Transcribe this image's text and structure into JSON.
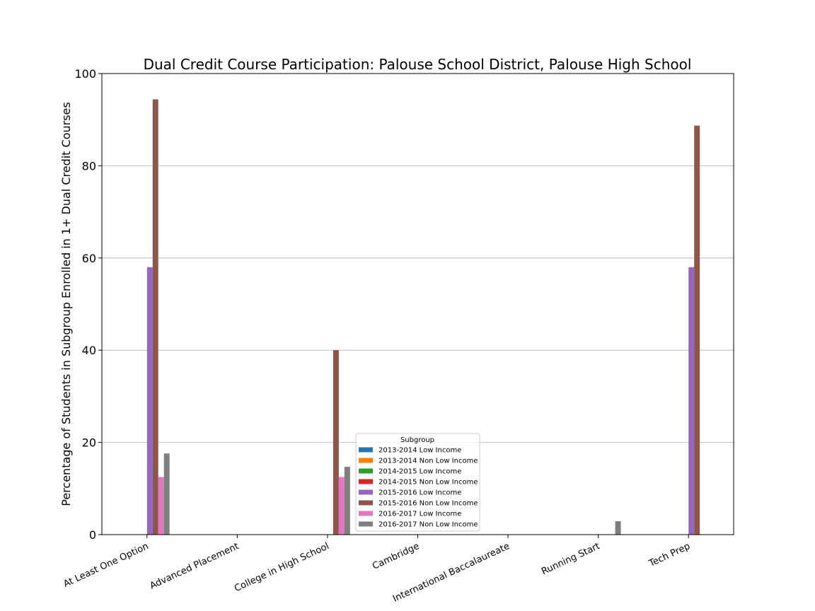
{
  "chart_data": {
    "type": "bar",
    "title": "Dual Credit Course Participation: Palouse School District, Palouse High School",
    "xlabel": "",
    "ylabel": "Percentage of Students in Subgroup Enrolled in 1+ Dual Credit Courses",
    "ylim": [
      0,
      100
    ],
    "yticks": [
      "0",
      "20",
      "40",
      "60",
      "80",
      "100"
    ],
    "grid": "horizontal",
    "legend": {
      "title": "Subgroup",
      "placement": "bottom-center"
    },
    "categories": [
      "At Least One Option",
      "Advanced Placement",
      "College in High School",
      "Cambridge",
      "International Baccalaureate",
      "Running Start",
      "Tech Prep"
    ],
    "series": [
      {
        "name": "2013-2014 Low Income",
        "color": "#1f77b4",
        "values": [
          0,
          0,
          0,
          0,
          0,
          0,
          0
        ]
      },
      {
        "name": "2013-2014 Non Low Income",
        "color": "#ff7f0e",
        "values": [
          0,
          0,
          0,
          0,
          0,
          0,
          0
        ]
      },
      {
        "name": "2014-2015 Low Income",
        "color": "#2ca02c",
        "values": [
          0,
          0,
          0,
          0,
          0,
          0,
          0
        ]
      },
      {
        "name": "2014-2015 Non Low Income",
        "color": "#d62728",
        "values": [
          0,
          0,
          0,
          0,
          0,
          0,
          0
        ]
      },
      {
        "name": "2015-2016 Low Income",
        "color": "#9467bd",
        "values": [
          58,
          0,
          0,
          0,
          0,
          0,
          58
        ]
      },
      {
        "name": "2015-2016 Non Low Income",
        "color": "#8c564b",
        "values": [
          94.4,
          0,
          40,
          0,
          0,
          0,
          88.7
        ]
      },
      {
        "name": "2016-2017 Low Income",
        "color": "#e377c2",
        "values": [
          12.5,
          0,
          12.5,
          0,
          0,
          0,
          0
        ]
      },
      {
        "name": "2016-2017 Non Low Income",
        "color": "#7f7f7f",
        "values": [
          17.6,
          0,
          14.7,
          0,
          0,
          2.9,
          0
        ]
      }
    ]
  }
}
